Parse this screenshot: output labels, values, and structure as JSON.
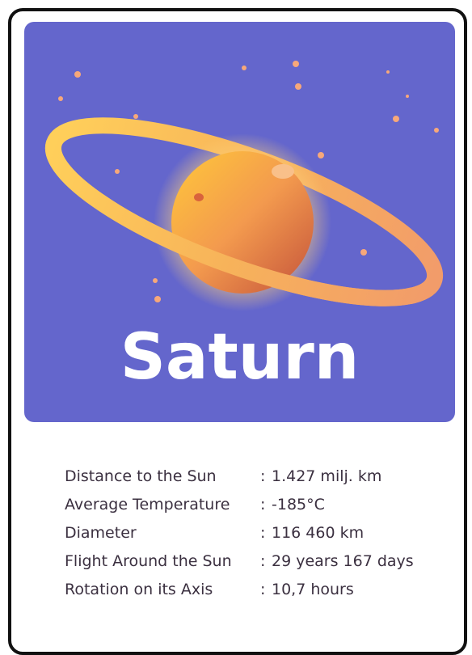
{
  "title": "Saturn",
  "separator": ":",
  "facts": [
    {
      "label": "Distance to the Sun",
      "value": "1.427 milj. km"
    },
    {
      "label": "Average Temperature",
      "value": "-185°C"
    },
    {
      "label": "Diameter",
      "value": "116 460 km"
    },
    {
      "label": "Flight Around the Sun",
      "value": "29 years 167 days"
    },
    {
      "label": "Rotation on its Axis",
      "value": "10,7 hours"
    }
  ]
}
